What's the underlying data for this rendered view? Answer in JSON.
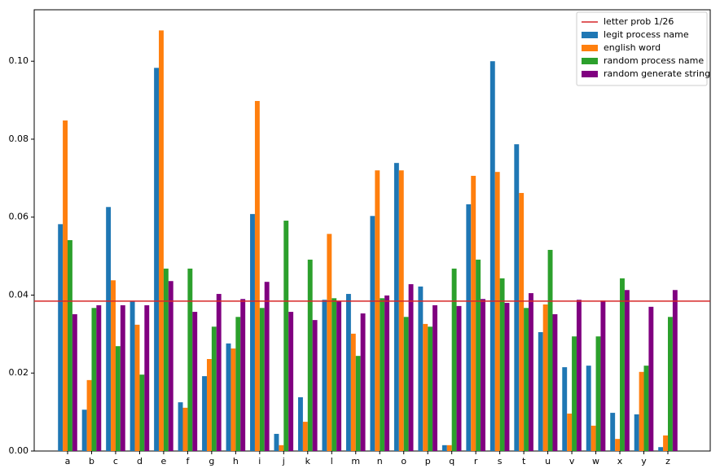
{
  "chart_data": {
    "type": "bar",
    "categories": [
      "a",
      "b",
      "c",
      "d",
      "e",
      "f",
      "g",
      "h",
      "i",
      "j",
      "k",
      "l",
      "m",
      "n",
      "o",
      "p",
      "q",
      "r",
      "s",
      "t",
      "u",
      "v",
      "w",
      "x",
      "y",
      "z"
    ],
    "series": [
      {
        "name": "legit process name",
        "color": "#1f77b4",
        "values": [
          0.0582,
          0.0106,
          0.0626,
          0.0384,
          0.0983,
          0.0125,
          0.0192,
          0.0276,
          0.0608,
          0.0044,
          0.0138,
          0.0388,
          0.0403,
          0.0603,
          0.0739,
          0.0422,
          0.0015,
          0.0633,
          0.1,
          0.0787,
          0.0305,
          0.0215,
          0.0219,
          0.0098,
          0.0094,
          0.001
        ]
      },
      {
        "name": "english word",
        "color": "#ff7f0e",
        "values": [
          0.0848,
          0.0182,
          0.0438,
          0.0324,
          0.1079,
          0.0111,
          0.0236,
          0.0263,
          0.0898,
          0.0015,
          0.0075,
          0.0557,
          0.0301,
          0.072,
          0.072,
          0.0326,
          0.0015,
          0.0706,
          0.0716,
          0.0662,
          0.0376,
          0.0096,
          0.0065,
          0.0031,
          0.0203,
          0.004
        ]
      },
      {
        "name": "random process name",
        "color": "#2ca02c",
        "values": [
          0.0541,
          0.0367,
          0.0269,
          0.0196,
          0.0468,
          0.0468,
          0.0319,
          0.0344,
          0.0367,
          0.0591,
          0.0491,
          0.0392,
          0.0244,
          0.0392,
          0.0344,
          0.0319,
          0.0468,
          0.0491,
          0.0443,
          0.0367,
          0.0516,
          0.0294,
          0.0294,
          0.0443,
          0.0219,
          0.0344
        ]
      },
      {
        "name": "random generate string",
        "color": "#800080",
        "values": [
          0.0351,
          0.0374,
          0.0374,
          0.0374,
          0.0436,
          0.0357,
          0.0403,
          0.039,
          0.0434,
          0.0357,
          0.0336,
          0.0384,
          0.0353,
          0.0399,
          0.0428,
          0.0374,
          0.0372,
          0.039,
          0.038,
          0.0405,
          0.0351,
          0.0388,
          0.0386,
          0.0413,
          0.037,
          0.0413
        ]
      }
    ],
    "reference_line": {
      "name": "letter prob 1/26",
      "value": 0.03846,
      "color": "#d62728"
    },
    "ylim": [
      0,
      0.1132
    ],
    "yticks": [
      {
        "value": 0,
        "label": "0.00"
      },
      0.02,
      0.04,
      0.06,
      0.08,
      {
        "value": 0.1,
        "label": "0.10"
      }
    ],
    "legend": "upper right"
  }
}
